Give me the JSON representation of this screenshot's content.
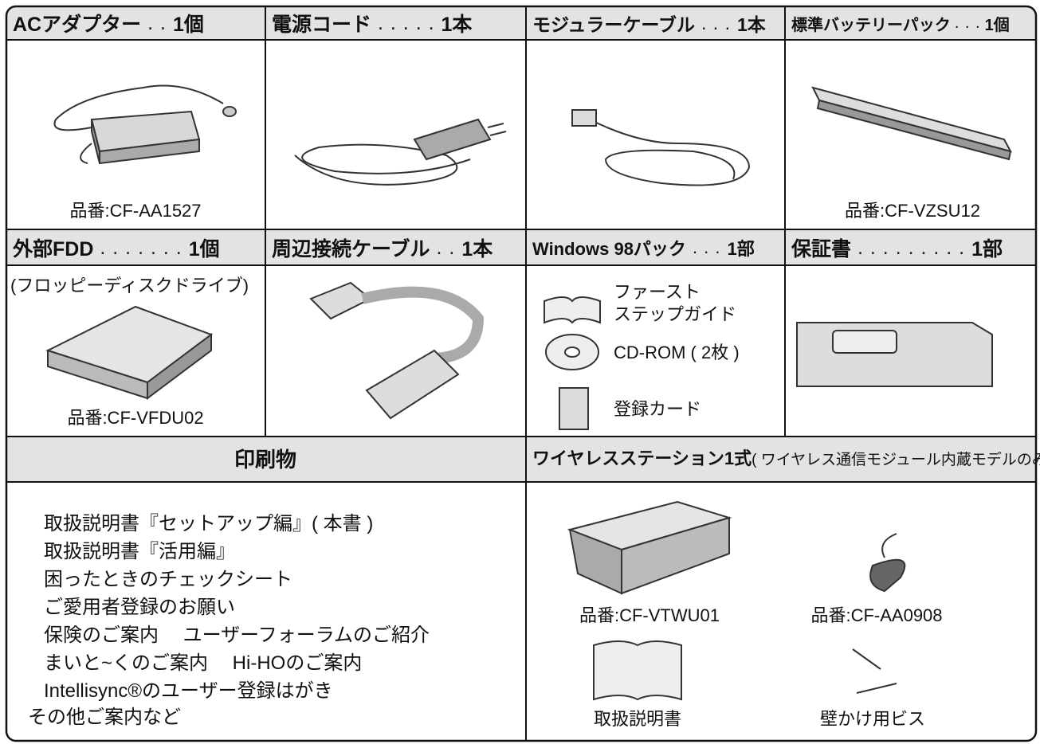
{
  "header_row_1": [
    {
      "name": "ACアダプター",
      "leader": ". .",
      "qty": "1個"
    },
    {
      "name": "電源コード",
      "leader": ". . . . .",
      "qty": "1本"
    },
    {
      "name": "モジュラーケーブル",
      "leader": ". . .",
      "qty": "1本"
    },
    {
      "name": "標準バッテリーパック",
      "leader": ". . .",
      "qty": "1個"
    }
  ],
  "row_1": {
    "ac_adapter_part": "品番:CF-AA1527",
    "battery_part": "品番:CF-VZSU12"
  },
  "header_row_2": [
    {
      "name": "外部FDD",
      "leader": ". . . . . . .",
      "qty": "1個"
    },
    {
      "name": "周辺接続ケーブル",
      "leader": ". .",
      "qty": "1本"
    },
    {
      "name": "Windows 98パック",
      "leader": ". . .",
      "qty": "1部"
    },
    {
      "name": "保証書",
      "leader": ". . . . . . . . .",
      "qty": "1部"
    }
  ],
  "row_2": {
    "fdd_note": "(フロッピーディスクドライブ)",
    "fdd_part": "品番:CF-VFDU02",
    "windows_pack": [
      "ファースト",
      "ステップガイド",
      "CD-ROM ( 2枚 )",
      "登録カード"
    ]
  },
  "header_row_3": {
    "printed": "印刷物",
    "wireless": "ワイヤレスステーション1式",
    "wireless_note": "( ワイヤレス通信モジュール内蔵モデルのみ )"
  },
  "printed_items": [
    "取扱説明書『セットアップ編』( 本書 )",
    "取扱説明書『活用編』",
    "困ったときのチェックシート",
    "ご愛用者登録のお願い",
    "保険のご案内　 ユーザーフォーラムのご紹介",
    "まいと~くのご案内　 Hi-HOのご案内",
    "Intellisync®のユーザー登録はがき",
    "その他ご案内など"
  ],
  "wireless_items": [
    "品番:CF-VTWU01",
    "品番:CF-AA0908",
    "取扱説明書",
    "壁かけ用ビス"
  ]
}
